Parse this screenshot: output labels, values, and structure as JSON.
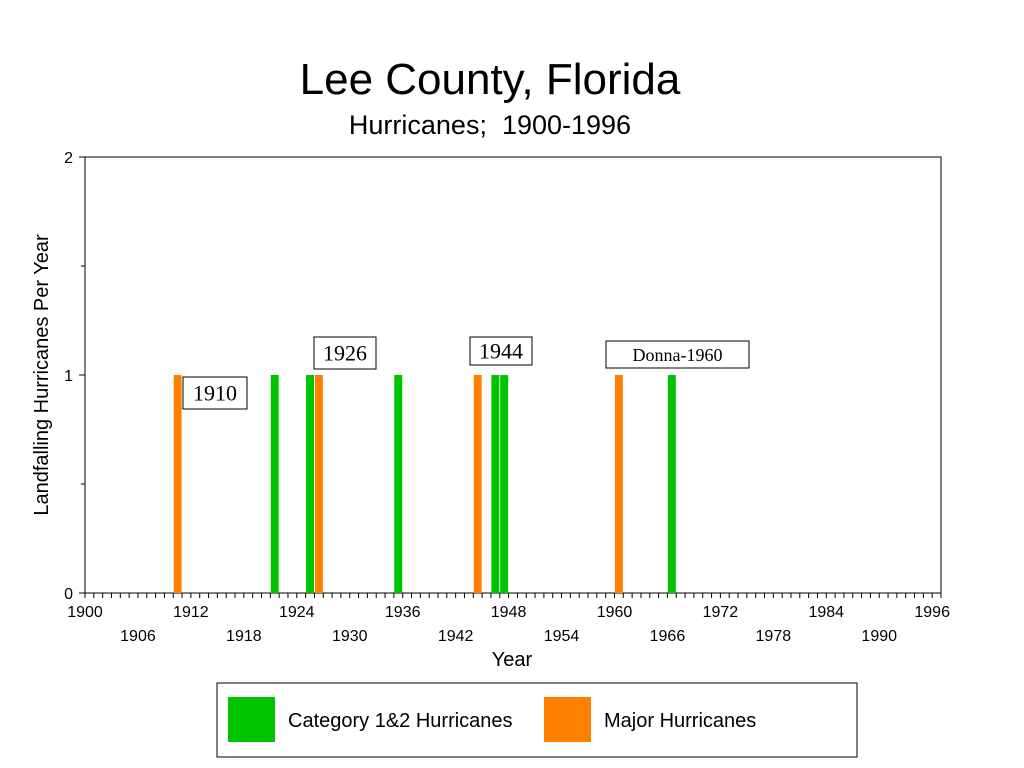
{
  "chart_data": {
    "type": "bar",
    "title": "Lee County, Florida",
    "subtitle": "Hurricanes;  1900-1996",
    "xlabel": "Year",
    "ylabel": "Landfalling Hurricanes Per Year",
    "xlim": [
      1900,
      1997
    ],
    "ylim": [
      0,
      2
    ],
    "y_ticks": [
      0,
      1,
      2
    ],
    "x_tick_labels_upper": [
      "1900",
      "1912",
      "1924",
      "1936",
      "1948",
      "1960",
      "1972",
      "1984",
      "1996"
    ],
    "x_tick_labels_lower": [
      "1906",
      "1918",
      "1930",
      "1942",
      "1954",
      "1966",
      "1978",
      "1990"
    ],
    "grid": false,
    "legend_position": "bottom",
    "series": [
      {
        "name": "Category 1&2 Hurricanes",
        "color": "#00c400",
        "points": [
          {
            "x": 1921,
            "y": 1
          },
          {
            "x": 1925,
            "y": 1
          },
          {
            "x": 1935,
            "y": 1
          },
          {
            "x": 1946,
            "y": 1
          },
          {
            "x": 1947,
            "y": 1
          },
          {
            "x": 1966,
            "y": 1
          }
        ]
      },
      {
        "name": "Major Hurricanes",
        "color": "#ff8000",
        "points": [
          {
            "x": 1910,
            "y": 1
          },
          {
            "x": 1926,
            "y": 1
          },
          {
            "x": 1944,
            "y": 1
          },
          {
            "x": 1960,
            "y": 1
          }
        ]
      }
    ],
    "annotations": [
      {
        "text": "1910"
      },
      {
        "text": "1926"
      },
      {
        "text": "1944"
      },
      {
        "text": "Donna-1960"
      }
    ]
  }
}
